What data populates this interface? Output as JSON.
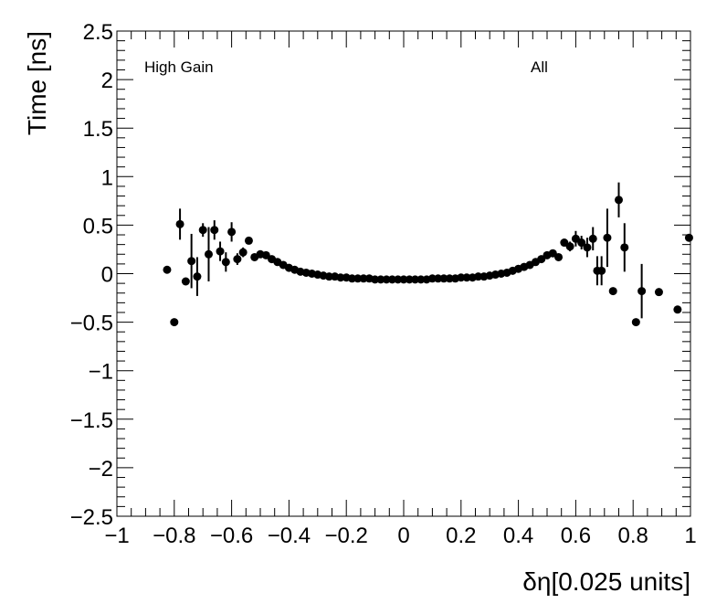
{
  "chart_data": {
    "type": "scatter",
    "xlabel": "δη[0.025 units]",
    "ylabel": "Time [ns]",
    "xlim": [
      -1,
      1
    ],
    "ylim": [
      -2.5,
      2.5
    ],
    "xticks": [
      -1,
      -0.8,
      -0.6,
      -0.4,
      -0.2,
      0,
      0.2,
      0.4,
      0.6,
      0.8,
      1
    ],
    "xtick_labels": [
      "−1",
      "−0.8",
      "−0.6",
      "−0.4",
      "−0.2",
      "0",
      "0.2",
      "0.4",
      "0.6",
      "0.8",
      "1"
    ],
    "yticks": [
      -2.5,
      -2,
      -1.5,
      -1,
      -0.5,
      0,
      0.5,
      1,
      1.5,
      2,
      2.5
    ],
    "ytick_labels": [
      "−2.5",
      "−2",
      "−1.5",
      "−1",
      "−0.5",
      "0",
      "0.5",
      "1",
      "1.5",
      "2",
      "2.5"
    ],
    "grid": false,
    "annotations": {
      "left": "High Gain",
      "right": "All"
    },
    "series": [
      {
        "marker": "circle",
        "color": "#000000",
        "points": [
          {
            "x": -0.825,
            "y": 0.04,
            "err": 0
          },
          {
            "x": -0.8,
            "y": -0.5,
            "err": 0
          },
          {
            "x": -0.78,
            "y": 0.51,
            "err": 0.16
          },
          {
            "x": -0.76,
            "y": -0.08,
            "err": 0
          },
          {
            "x": -0.74,
            "y": 0.13,
            "err": 0.28
          },
          {
            "x": -0.72,
            "y": -0.03,
            "err": 0.2
          },
          {
            "x": -0.7,
            "y": 0.45,
            "err": 0.07
          },
          {
            "x": -0.68,
            "y": 0.2,
            "err": 0.28
          },
          {
            "x": -0.66,
            "y": 0.45,
            "err": 0.1
          },
          {
            "x": -0.64,
            "y": 0.23,
            "err": 0.1
          },
          {
            "x": -0.62,
            "y": 0.12,
            "err": 0.1
          },
          {
            "x": -0.6,
            "y": 0.43,
            "err": 0.1
          },
          {
            "x": -0.58,
            "y": 0.15,
            "err": 0.06
          },
          {
            "x": -0.56,
            "y": 0.22,
            "err": 0.05
          },
          {
            "x": -0.54,
            "y": 0.34,
            "err": 0
          },
          {
            "x": -0.52,
            "y": 0.17,
            "err": 0
          },
          {
            "x": -0.5,
            "y": 0.2,
            "err": 0
          },
          {
            "x": -0.48,
            "y": 0.19,
            "err": 0
          },
          {
            "x": -0.46,
            "y": 0.15,
            "err": 0
          },
          {
            "x": -0.44,
            "y": 0.12,
            "err": 0
          },
          {
            "x": -0.42,
            "y": 0.09,
            "err": 0
          },
          {
            "x": -0.4,
            "y": 0.06,
            "err": 0
          },
          {
            "x": -0.38,
            "y": 0.04,
            "err": 0
          },
          {
            "x": -0.36,
            "y": 0.02,
            "err": 0
          },
          {
            "x": -0.34,
            "y": 0.01,
            "err": 0
          },
          {
            "x": -0.32,
            "y": 0.0,
            "err": 0
          },
          {
            "x": -0.3,
            "y": -0.01,
            "err": 0
          },
          {
            "x": -0.28,
            "y": -0.02,
            "err": 0
          },
          {
            "x": -0.26,
            "y": -0.03,
            "err": 0
          },
          {
            "x": -0.24,
            "y": -0.03,
            "err": 0
          },
          {
            "x": -0.22,
            "y": -0.04,
            "err": 0
          },
          {
            "x": -0.2,
            "y": -0.04,
            "err": 0
          },
          {
            "x": -0.18,
            "y": -0.05,
            "err": 0
          },
          {
            "x": -0.16,
            "y": -0.05,
            "err": 0
          },
          {
            "x": -0.14,
            "y": -0.05,
            "err": 0
          },
          {
            "x": -0.12,
            "y": -0.05,
            "err": 0
          },
          {
            "x": -0.1,
            "y": -0.06,
            "err": 0
          },
          {
            "x": -0.08,
            "y": -0.06,
            "err": 0
          },
          {
            "x": -0.06,
            "y": -0.06,
            "err": 0
          },
          {
            "x": -0.04,
            "y": -0.06,
            "err": 0
          },
          {
            "x": -0.02,
            "y": -0.06,
            "err": 0
          },
          {
            "x": 0.0,
            "y": -0.06,
            "err": 0
          },
          {
            "x": 0.02,
            "y": -0.06,
            "err": 0
          },
          {
            "x": 0.04,
            "y": -0.06,
            "err": 0
          },
          {
            "x": 0.06,
            "y": -0.06,
            "err": 0
          },
          {
            "x": 0.08,
            "y": -0.06,
            "err": 0
          },
          {
            "x": 0.1,
            "y": -0.05,
            "err": 0
          },
          {
            "x": 0.12,
            "y": -0.05,
            "err": 0
          },
          {
            "x": 0.14,
            "y": -0.05,
            "err": 0
          },
          {
            "x": 0.16,
            "y": -0.05,
            "err": 0
          },
          {
            "x": 0.18,
            "y": -0.05,
            "err": 0
          },
          {
            "x": 0.2,
            "y": -0.04,
            "err": 0
          },
          {
            "x": 0.22,
            "y": -0.04,
            "err": 0
          },
          {
            "x": 0.24,
            "y": -0.04,
            "err": 0
          },
          {
            "x": 0.26,
            "y": -0.03,
            "err": 0
          },
          {
            "x": 0.28,
            "y": -0.03,
            "err": 0
          },
          {
            "x": 0.3,
            "y": -0.02,
            "err": 0
          },
          {
            "x": 0.32,
            "y": -0.01,
            "err": 0
          },
          {
            "x": 0.34,
            "y": 0.0,
            "err": 0
          },
          {
            "x": 0.36,
            "y": 0.01,
            "err": 0
          },
          {
            "x": 0.38,
            "y": 0.03,
            "err": 0
          },
          {
            "x": 0.4,
            "y": 0.05,
            "err": 0
          },
          {
            "x": 0.42,
            "y": 0.07,
            "err": 0
          },
          {
            "x": 0.44,
            "y": 0.09,
            "err": 0
          },
          {
            "x": 0.46,
            "y": 0.12,
            "err": 0
          },
          {
            "x": 0.48,
            "y": 0.15,
            "err": 0
          },
          {
            "x": 0.5,
            "y": 0.19,
            "err": 0
          },
          {
            "x": 0.52,
            "y": 0.21,
            "err": 0
          },
          {
            "x": 0.54,
            "y": 0.17,
            "err": 0
          },
          {
            "x": 0.56,
            "y": 0.32,
            "err": 0
          },
          {
            "x": 0.58,
            "y": 0.28,
            "err": 0.05
          },
          {
            "x": 0.6,
            "y": 0.36,
            "err": 0.08
          },
          {
            "x": 0.62,
            "y": 0.32,
            "err": 0.07
          },
          {
            "x": 0.64,
            "y": 0.27,
            "err": 0.1
          },
          {
            "x": 0.66,
            "y": 0.36,
            "err": 0.12
          },
          {
            "x": 0.675,
            "y": 0.03,
            "err": 0.15
          },
          {
            "x": 0.69,
            "y": 0.03,
            "err": 0.15
          },
          {
            "x": 0.71,
            "y": 0.37,
            "err": 0.3
          },
          {
            "x": 0.73,
            "y": -0.18,
            "err": 0
          },
          {
            "x": 0.75,
            "y": 0.76,
            "err": 0.18
          },
          {
            "x": 0.77,
            "y": 0.27,
            "err": 0.25
          },
          {
            "x": 0.81,
            "y": -0.5,
            "err": 0
          },
          {
            "x": 0.83,
            "y": -0.18,
            "err": 0.28
          },
          {
            "x": 0.89,
            "y": -0.19,
            "err": 0
          },
          {
            "x": 0.955,
            "y": -0.37,
            "err": 0
          },
          {
            "x": 0.995,
            "y": 0.37,
            "err": 0
          }
        ]
      }
    ]
  }
}
